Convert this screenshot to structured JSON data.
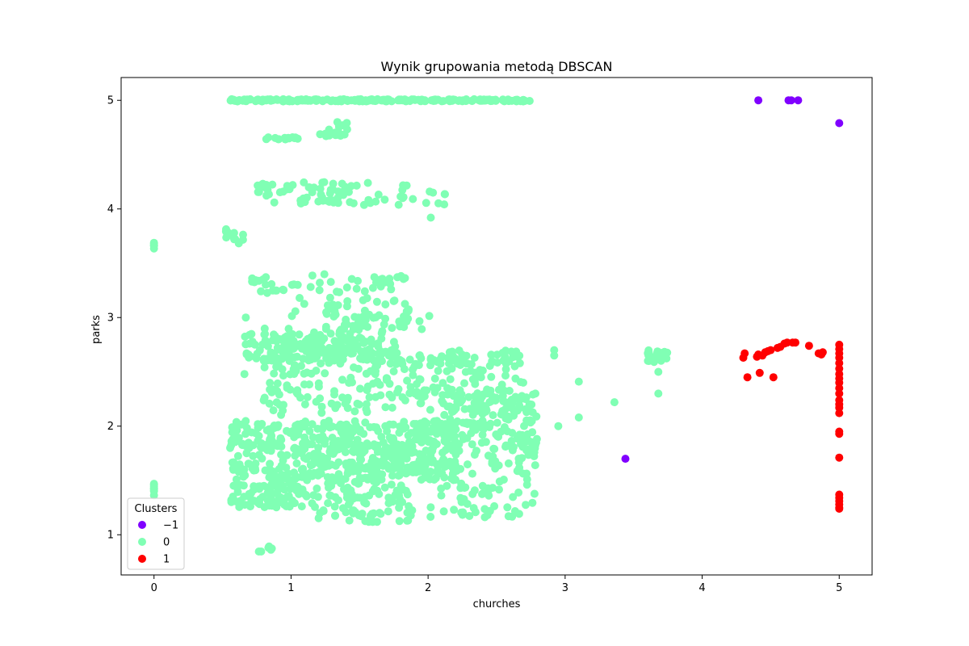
{
  "chart_data": {
    "type": "scatter",
    "title": "Wynik grupowania metodą DBSCAN",
    "xlabel": "churches",
    "ylabel": "parks",
    "xlim": [
      -0.24,
      5.24
    ],
    "ylim": [
      0.63,
      5.21
    ],
    "xticks": [
      0,
      1,
      2,
      3,
      4,
      5
    ],
    "yticks": [
      1,
      2,
      3,
      4,
      5
    ],
    "grid": false,
    "legend": {
      "title": "Clusters",
      "placement": "lower-left"
    },
    "series": [
      {
        "name": "−1",
        "color": "#8000ff",
        "points": [
          [
            4.41,
            5.0
          ],
          [
            4.63,
            5.0
          ],
          [
            4.65,
            5.0
          ],
          [
            4.7,
            5.0
          ],
          [
            5.0,
            4.79
          ],
          [
            3.44,
            1.7
          ]
        ]
      },
      {
        "name": "0",
        "color": "#80ffb4",
        "bands": [
          {
            "x": [
              0.55,
              2.75
            ],
            "y": [
              4.99,
              5.01
            ],
            "n": 220
          },
          {
            "x": [
              0.81,
              1.05
            ],
            "y": [
              4.64,
              4.66
            ],
            "n": 14
          },
          {
            "x": [
              1.18,
              1.42
            ],
            "y": [
              4.66,
              4.8
            ],
            "n": 18
          },
          {
            "x": [
              0.75,
              1.35
            ],
            "y": [
              4.05,
              4.25
            ],
            "n": 40
          },
          {
            "x": [
              1.2,
              2.15
            ],
            "y": [
              4.03,
              4.25
            ],
            "n": 40
          },
          {
            "x": [
              0.52,
              0.65
            ],
            "y": [
              3.68,
              3.82
            ],
            "n": 12
          },
          {
            "x": [
              0.0,
              0.0
            ],
            "y": [
              3.63,
              3.69
            ],
            "n": 5
          },
          {
            "x": [
              0.7,
              0.95
            ],
            "y": [
              3.22,
              3.4
            ],
            "n": 16
          },
          {
            "x": [
              1.0,
              1.9
            ],
            "y": [
              3.0,
              3.4
            ],
            "n": 60
          },
          {
            "x": [
              1.25,
              2.05
            ],
            "y": [
              2.85,
              3.05
            ],
            "n": 40
          },
          {
            "x": [
              0.65,
              1.6
            ],
            "y": [
              2.6,
              2.85
            ],
            "n": 140
          },
          {
            "x": [
              1.6,
              2.7
            ],
            "y": [
              2.55,
              2.7
            ],
            "n": 60
          },
          {
            "x": [
              0.8,
              1.8
            ],
            "y": [
              2.1,
              2.9
            ],
            "n": 160
          },
          {
            "x": [
              1.8,
              2.7
            ],
            "y": [
              2.15,
              2.6
            ],
            "n": 100
          },
          {
            "x": [
              0.55,
              1.2
            ],
            "y": [
              1.25,
              2.05
            ],
            "n": 260
          },
          {
            "x": [
              1.2,
              2.2
            ],
            "y": [
              1.5,
              2.05
            ],
            "n": 320
          },
          {
            "x": [
              2.1,
              2.8
            ],
            "y": [
              1.8,
              2.3
            ],
            "n": 120
          },
          {
            "x": [
              1.2,
              1.9
            ],
            "y": [
              1.1,
              1.5
            ],
            "n": 90
          },
          {
            "x": [
              2.0,
              2.8
            ],
            "y": [
              1.15,
              1.9
            ],
            "n": 110
          },
          {
            "x": [
              0.0,
              0.0
            ],
            "y": [
              1.35,
              1.49
            ],
            "n": 8
          },
          {
            "x": [
              0.73,
              0.86
            ],
            "y": [
              0.83,
              0.9
            ],
            "n": 6
          },
          {
            "x": [
              3.6,
              3.75
            ],
            "y": [
              2.58,
              2.7
            ],
            "n": 20
          }
        ],
        "points": [
          [
            2.92,
            2.7
          ],
          [
            2.92,
            2.65
          ],
          [
            3.1,
            2.41
          ],
          [
            3.1,
            2.08
          ],
          [
            2.95,
            2.0
          ],
          [
            3.36,
            2.22
          ],
          [
            3.68,
            2.3
          ],
          [
            3.68,
            2.5
          ],
          [
            2.02,
            3.92
          ],
          [
            0.67,
            3.0
          ],
          [
            0.66,
            2.48
          ]
        ]
      },
      {
        "name": "1",
        "color": "#ff0000",
        "points": [
          [
            4.3,
            2.63
          ],
          [
            4.31,
            2.67
          ],
          [
            4.33,
            2.45
          ],
          [
            4.4,
            2.64
          ],
          [
            4.42,
            2.49
          ],
          [
            4.44,
            2.65
          ],
          [
            4.46,
            2.68
          ],
          [
            4.5,
            2.7
          ],
          [
            4.52,
            2.45
          ],
          [
            4.55,
            2.72
          ],
          [
            4.57,
            2.73
          ],
          [
            4.6,
            2.76
          ],
          [
            4.62,
            2.77
          ],
          [
            4.66,
            2.77
          ],
          [
            4.68,
            2.77
          ],
          [
            4.78,
            2.74
          ],
          [
            4.85,
            2.67
          ],
          [
            4.88,
            2.68
          ],
          [
            4.87,
            2.66
          ],
          [
            4.41,
            2.66
          ],
          [
            4.48,
            2.69
          ],
          [
            5.0,
            2.75
          ],
          [
            5.0,
            2.71
          ],
          [
            5.0,
            2.67
          ],
          [
            5.0,
            2.63
          ],
          [
            5.0,
            2.58
          ],
          [
            5.0,
            2.53
          ],
          [
            5.0,
            2.48
          ],
          [
            5.0,
            2.44
          ],
          [
            5.0,
            2.4
          ],
          [
            5.0,
            2.35
          ],
          [
            5.0,
            2.3
          ],
          [
            5.0,
            2.24
          ],
          [
            5.0,
            2.2
          ],
          [
            5.0,
            2.17
          ],
          [
            5.0,
            2.12
          ],
          [
            5.0,
            1.95
          ],
          [
            5.0,
            1.93
          ],
          [
            5.0,
            1.71
          ],
          [
            5.0,
            1.37
          ],
          [
            5.0,
            1.34
          ],
          [
            5.0,
            1.31
          ],
          [
            5.0,
            1.28
          ],
          [
            5.0,
            1.25
          ],
          [
            5.0,
            1.24
          ]
        ]
      }
    ]
  }
}
